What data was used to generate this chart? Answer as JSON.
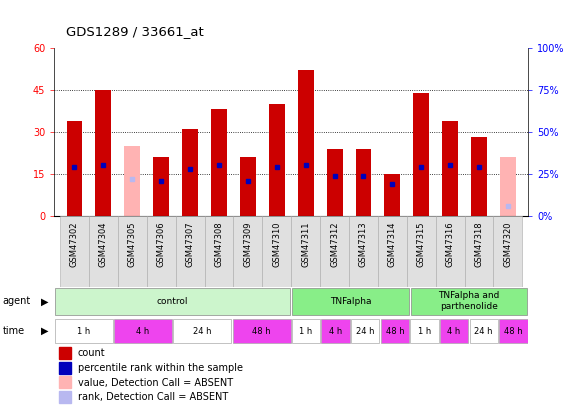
{
  "title": "GDS1289 / 33661_at",
  "samples": [
    "GSM47302",
    "GSM47304",
    "GSM47305",
    "GSM47306",
    "GSM47307",
    "GSM47308",
    "GSM47309",
    "GSM47310",
    "GSM47311",
    "GSM47312",
    "GSM47313",
    "GSM47314",
    "GSM47315",
    "GSM47316",
    "GSM47318",
    "GSM47320"
  ],
  "count_values": [
    34,
    45,
    25,
    21,
    31,
    38,
    21,
    40,
    52,
    24,
    24,
    15,
    44,
    34,
    28,
    21
  ],
  "count_absent": [
    false,
    false,
    true,
    false,
    false,
    false,
    false,
    false,
    false,
    false,
    false,
    false,
    false,
    false,
    false,
    true
  ],
  "percentile_values": [
    29,
    30,
    22,
    21,
    28,
    30,
    21,
    29,
    30,
    24,
    24,
    19,
    29,
    30,
    29,
    6
  ],
  "percentile_absent": [
    false,
    false,
    true,
    false,
    false,
    false,
    false,
    false,
    false,
    false,
    false,
    false,
    false,
    false,
    false,
    true
  ],
  "ylim_left": [
    0,
    60
  ],
  "ylim_right": [
    0,
    100
  ],
  "yticks_left": [
    0,
    15,
    30,
    45,
    60
  ],
  "yticks_right": [
    0,
    25,
    50,
    75,
    100
  ],
  "count_color": "#cc0000",
  "count_absent_color": "#ffb3b3",
  "percentile_color": "#0000bb",
  "percentile_absent_color": "#b8b8f0",
  "bg_color": "#ffffff",
  "xtick_bg": "#e0e0e0",
  "agent_groups": [
    {
      "label": "control",
      "start": 0,
      "end": 8,
      "color": "#ccf5cc"
    },
    {
      "label": "TNFalpha",
      "start": 8,
      "end": 12,
      "color": "#88ee88"
    },
    {
      "label": "TNFalpha and\nparthenolide",
      "start": 12,
      "end": 16,
      "color": "#88ee88"
    }
  ],
  "time_groups": [
    {
      "label": "1 h",
      "start": 0,
      "end": 2,
      "color": "#ffffff"
    },
    {
      "label": "4 h",
      "start": 2,
      "end": 4,
      "color": "#ee44ee"
    },
    {
      "label": "24 h",
      "start": 4,
      "end": 6,
      "color": "#ffffff"
    },
    {
      "label": "48 h",
      "start": 6,
      "end": 8,
      "color": "#ee44ee"
    },
    {
      "label": "1 h",
      "start": 8,
      "end": 9,
      "color": "#ffffff"
    },
    {
      "label": "4 h",
      "start": 9,
      "end": 10,
      "color": "#ee44ee"
    },
    {
      "label": "24 h",
      "start": 10,
      "end": 11,
      "color": "#ffffff"
    },
    {
      "label": "48 h",
      "start": 11,
      "end": 12,
      "color": "#ee44ee"
    },
    {
      "label": "1 h",
      "start": 12,
      "end": 13,
      "color": "#ffffff"
    },
    {
      "label": "4 h",
      "start": 13,
      "end": 14,
      "color": "#ee44ee"
    },
    {
      "label": "24 h",
      "start": 14,
      "end": 15,
      "color": "#ffffff"
    },
    {
      "label": "48 h",
      "start": 15,
      "end": 16,
      "color": "#ee44ee"
    }
  ],
  "legend_labels": [
    "count",
    "percentile rank within the sample",
    "value, Detection Call = ABSENT",
    "rank, Detection Call = ABSENT"
  ],
  "legend_colors": [
    "#cc0000",
    "#0000bb",
    "#ffb3b3",
    "#b8b8f0"
  ]
}
